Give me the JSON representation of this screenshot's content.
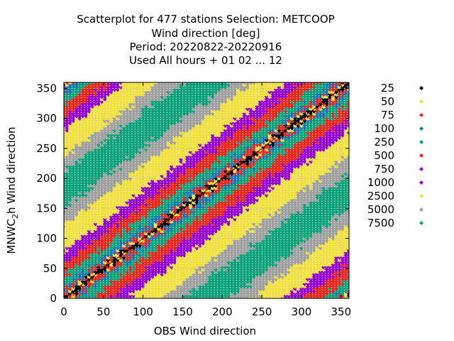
{
  "chart_data": {
    "type": "scatter",
    "title_lines": [
      "Scatterplot for  477 stations Selection: METCOOP",
      "Wind direction [deg]",
      "Period: 20220822-20220916",
      "Used  All hours + 01 02 ... 12"
    ],
    "xlabel": "OBS Wind direction",
    "ylabel_main": "MNWC",
    "ylabel_sub": "2",
    "ylabel_tail": "h Wind direction",
    "xlim": [
      0,
      360
    ],
    "ylim": [
      0,
      360
    ],
    "xticks": [
      "0",
      "50",
      "100",
      "150",
      "200",
      "250",
      "300",
      "350"
    ],
    "yticks": [
      "0",
      "50",
      "100",
      "150",
      "200",
      "250",
      "300",
      "350"
    ],
    "grid": true,
    "diagonal": true,
    "legend_position": "right",
    "series": [
      {
        "name": "25",
        "color": "#000000",
        "band": 0
      },
      {
        "name": "50",
        "color": "#f0e040",
        "band": 1
      },
      {
        "name": "75",
        "color": "#e8281c",
        "band": 2
      },
      {
        "name": "100",
        "color": "#1a74b8",
        "band": 3
      },
      {
        "name": "250",
        "color": "#0ca27a",
        "band": 4
      },
      {
        "name": "500",
        "color": "#e8281c",
        "band": 5
      },
      {
        "name": "750",
        "color": "#9400d3",
        "band": 6
      },
      {
        "name": "1000",
        "color": "#9400d3",
        "band": 7
      },
      {
        "name": "2500",
        "color": "#f0e040",
        "band": 8
      },
      {
        "name": "5000",
        "color": "#a0a0a0",
        "band": 9
      },
      {
        "name": "7500",
        "color": "#0ca27a",
        "band": 10
      }
    ]
  }
}
